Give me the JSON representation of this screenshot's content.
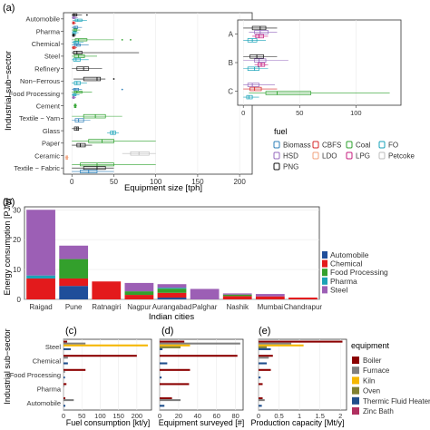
{
  "panels": {
    "a": "(a)",
    "b": "(b)",
    "c": "(c)",
    "d": "(d)",
    "e": "(e)"
  },
  "colors": {
    "Biomass": "#2c7fb8",
    "CBFS": "#d62728",
    "Coal": "#2ca02c",
    "FO": "#17a2b8",
    "HSD": "#9467bd",
    "LDO": "#f2a07b",
    "LPG": "#c51b7d",
    "Petcoke": "#bdbdbd",
    "PNG": "#111111",
    "Automobile": "#1f4e9a",
    "Chemical": "#e31a1c",
    "Food Processing": "#33a02c",
    "Pharma": "#1aa3b5",
    "Steel": "#9c5fb5",
    "Boiler": "#8b0000",
    "Furnace": "#808080",
    "Kiln": "#f5b700",
    "Oven": "#808030",
    "Thermic Fluid Heater": "#1f4e8c",
    "Zinc Bath": "#b03060"
  },
  "chart_data": [
    {
      "type": "boxplot",
      "panel": "a",
      "xlabel": "Equipment size [tph]",
      "ylabel": "Industrial sub−sector",
      "xlim": [
        -10,
        215
      ],
      "xticks": [
        0,
        50,
        100,
        150,
        200
      ],
      "categories": [
        "Automobile",
        "Pharma",
        "Chemical",
        "Steel",
        "Refinery",
        "Non−Ferrous",
        "Food Processing",
        "Cement",
        "Textile − Yarn",
        "Glass",
        "Paper",
        "Ceramic",
        "Textile − Fabric"
      ],
      "legend_title": "fuel",
      "legend": [
        "Biomass",
        "CBFS",
        "Coal",
        "FO",
        "HSD",
        "LDO",
        "LPG",
        "Petcoke",
        "PNG"
      ],
      "boxes": [
        {
          "category": "Automobile",
          "fuel": "PNG",
          "min": 0,
          "q1": 1,
          "median": 3,
          "q3": 6,
          "max": 12,
          "outliers": [
            18
          ]
        },
        {
          "category": "Automobile",
          "fuel": "HSD",
          "min": 0,
          "q1": 1,
          "median": 2,
          "q3": 4,
          "max": 7,
          "outliers": []
        },
        {
          "category": "Automobile",
          "fuel": "FO",
          "min": 1,
          "q1": 4,
          "median": 7,
          "q3": 12,
          "max": 18,
          "outliers": []
        },
        {
          "category": "Automobile",
          "fuel": "CBFS",
          "min": 0,
          "q1": 1,
          "median": 2,
          "q3": 3,
          "max": 5,
          "outliers": []
        },
        {
          "category": "Pharma",
          "fuel": "Biomass",
          "min": 0,
          "q1": 2,
          "median": 4,
          "q3": 7,
          "max": 12,
          "outliers": []
        },
        {
          "category": "Pharma",
          "fuel": "Coal",
          "min": 0,
          "q1": 2,
          "median": 4,
          "q3": 6,
          "max": 10,
          "outliers": []
        },
        {
          "category": "Pharma",
          "fuel": "FO",
          "min": 0,
          "q1": 1,
          "median": 3,
          "q3": 5,
          "max": 8,
          "outliers": []
        },
        {
          "category": "Pharma",
          "fuel": "PNG",
          "min": 0,
          "q1": 1,
          "median": 2,
          "q3": 3,
          "max": 5,
          "outliers": []
        },
        {
          "category": "Chemical",
          "fuel": "Coal",
          "min": 0,
          "q1": 4,
          "median": 8,
          "q3": 18,
          "max": 50,
          "outliers": [
            60,
            70
          ]
        },
        {
          "category": "Chemical",
          "fuel": "FO",
          "min": 0,
          "q1": 2,
          "median": 4,
          "q3": 8,
          "max": 14,
          "outliers": []
        },
        {
          "category": "Chemical",
          "fuel": "Biomass",
          "min": 0,
          "q1": 3,
          "median": 6,
          "q3": 10,
          "max": 20,
          "outliers": []
        },
        {
          "category": "Chemical",
          "fuel": "CBFS",
          "min": 0,
          "q1": 1,
          "median": 2,
          "q3": 4,
          "max": 6,
          "outliers": []
        },
        {
          "category": "Steel",
          "fuel": "PNG",
          "min": 0,
          "q1": 2,
          "median": 6,
          "q3": 12,
          "max": 80,
          "outliers": []
        },
        {
          "category": "Steel",
          "fuel": "Coal",
          "min": 0,
          "q1": 3,
          "median": 8,
          "q3": 15,
          "max": 30,
          "outliers": []
        },
        {
          "category": "Steel",
          "fuel": "FO",
          "min": 0,
          "q1": 2,
          "median": 5,
          "q3": 10,
          "max": 20,
          "outliers": []
        },
        {
          "category": "Refinery",
          "fuel": "PNG",
          "min": 0,
          "q1": 6,
          "median": 14,
          "q3": 20,
          "max": 36,
          "outliers": []
        },
        {
          "category": "Non−Ferrous",
          "fuel": "PNG",
          "min": 2,
          "q1": 14,
          "median": 30,
          "q3": 34,
          "max": 40,
          "outliers": [
            50
          ]
        },
        {
          "category": "Non−Ferrous",
          "fuel": "FO",
          "min": 0,
          "q1": 3,
          "median": 6,
          "q3": 10,
          "max": 18,
          "outliers": []
        },
        {
          "category": "Food Processing",
          "fuel": "Biomass",
          "min": 0,
          "q1": 2,
          "median": 4,
          "q3": 8,
          "max": 12,
          "outliers": [
            60
          ]
        },
        {
          "category": "Food Processing",
          "fuel": "Coal",
          "min": 0,
          "q1": 3,
          "median": 6,
          "q3": 12,
          "max": 24,
          "outliers": []
        },
        {
          "category": "Food Processing",
          "fuel": "FO",
          "min": 0,
          "q1": 1,
          "median": 3,
          "q3": 5,
          "max": 9,
          "outliers": []
        },
        {
          "category": "Food Processing",
          "fuel": "HSD",
          "min": 0,
          "q1": 1,
          "median": 2,
          "q3": 3,
          "max": 5,
          "outliers": []
        },
        {
          "category": "Cement",
          "fuel": "Coal",
          "min": 2,
          "q1": 3,
          "median": 4,
          "q3": 5,
          "max": 6,
          "outliers": []
        },
        {
          "category": "Textile − Yarn",
          "fuel": "Coal",
          "min": 0,
          "q1": 14,
          "median": 28,
          "q3": 40,
          "max": 60,
          "outliers": []
        },
        {
          "category": "Textile − Yarn",
          "fuel": "Biomass",
          "min": 0,
          "q1": 4,
          "median": 8,
          "q3": 14,
          "max": 22,
          "outliers": []
        },
        {
          "category": "Glass",
          "fuel": "PNG",
          "min": 0,
          "q1": 3,
          "median": 6,
          "q3": 8,
          "max": 12,
          "outliers": []
        },
        {
          "category": "Glass",
          "fuel": "FO",
          "min": 42,
          "q1": 46,
          "median": 49,
          "q3": 52,
          "max": 56,
          "outliers": []
        },
        {
          "category": "Paper",
          "fuel": "Coal",
          "min": 0,
          "q1": 20,
          "median": 36,
          "q3": 50,
          "max": 100,
          "outliers": []
        },
        {
          "category": "Paper",
          "fuel": "PNG",
          "min": 0,
          "q1": 6,
          "median": 10,
          "q3": 16,
          "max": 24,
          "outliers": []
        },
        {
          "category": "Ceramic",
          "fuel": "Petcoke",
          "min": 60,
          "q1": 70,
          "median": 80,
          "q3": 92,
          "max": 100,
          "outliers": []
        },
        {
          "category": "Ceramic",
          "fuel": "LDO",
          "min": -8,
          "q1": -7,
          "median": -6,
          "q3": -5,
          "max": -4,
          "outliers": []
        },
        {
          "category": "Textile − Fabric",
          "fuel": "Coal",
          "min": 0,
          "q1": 10,
          "median": 30,
          "q3": 50,
          "max": 100,
          "outliers": []
        },
        {
          "category": "Textile − Fabric",
          "fuel": "PNG",
          "min": 0,
          "q1": 14,
          "median": 30,
          "q3": 40,
          "max": 50,
          "outliers": []
        },
        {
          "category": "Textile − Fabric",
          "fuel": "Biomass",
          "min": 0,
          "q1": 10,
          "median": 20,
          "q3": 30,
          "max": 50,
          "outliers": []
        }
      ]
    },
    {
      "type": "boxplot",
      "panel": "a-inset",
      "xlim": [
        -5,
        140
      ],
      "xticks": [
        0,
        50,
        100
      ],
      "categories": [
        "A",
        "B",
        "C"
      ],
      "boxes": [
        {
          "category": "A",
          "fuel": "PNG",
          "min": 0,
          "q1": 8,
          "median": 15,
          "q3": 20,
          "max": 30,
          "outliers": []
        },
        {
          "category": "A",
          "fuel": "HSD",
          "min": 5,
          "q1": 10,
          "median": 15,
          "q3": 22,
          "max": 30,
          "outliers": []
        },
        {
          "category": "A",
          "fuel": "LPG",
          "min": 8,
          "q1": 11,
          "median": 14,
          "q3": 18,
          "max": 22,
          "outliers": []
        },
        {
          "category": "A",
          "fuel": "FO",
          "min": 0,
          "q1": 4,
          "median": 8,
          "q3": 12,
          "max": 20,
          "outliers": []
        },
        {
          "category": "B",
          "fuel": "PNG",
          "min": 0,
          "q1": 6,
          "median": 12,
          "q3": 18,
          "max": 30,
          "outliers": []
        },
        {
          "category": "B",
          "fuel": "HSD",
          "min": 0,
          "q1": 10,
          "median": 14,
          "q3": 20,
          "max": 40,
          "outliers": []
        },
        {
          "category": "B",
          "fuel": "LPG",
          "min": 10,
          "q1": 13,
          "median": 16,
          "q3": 19,
          "max": 22,
          "outliers": []
        },
        {
          "category": "B",
          "fuel": "FO",
          "min": 0,
          "q1": 4,
          "median": 10,
          "q3": 14,
          "max": 22,
          "outliers": []
        },
        {
          "category": "C",
          "fuel": "HSD",
          "min": 0,
          "q1": 4,
          "median": 8,
          "q3": 14,
          "max": 28,
          "outliers": []
        },
        {
          "category": "C",
          "fuel": "CBFS",
          "min": 0,
          "q1": 6,
          "median": 10,
          "q3": 16,
          "max": 30,
          "outliers": []
        },
        {
          "category": "C",
          "fuel": "Coal",
          "min": 5,
          "q1": 20,
          "median": 30,
          "q3": 60,
          "max": 130,
          "outliers": []
        },
        {
          "category": "C",
          "fuel": "FO",
          "min": 0,
          "q1": 3,
          "median": 5,
          "q3": 8,
          "max": 14,
          "outliers": []
        }
      ]
    },
    {
      "type": "stacked_bar",
      "panel": "b",
      "xlabel": "Indian cities",
      "ylabel": "Energy consumption [PJ/y]",
      "ylim": [
        0,
        31
      ],
      "yticks": [
        0,
        10,
        20,
        30
      ],
      "categories": [
        "Raigad",
        "Pune",
        "Ratnagiri",
        "Nagpur",
        "Aurangabad",
        "Palghar",
        "Nashik",
        "Mumbai",
        "Chandrapur"
      ],
      "legend": [
        "Automobile",
        "Chemical",
        "Food Processing",
        "Pharma",
        "Steel"
      ],
      "series": [
        {
          "name": "Automobile",
          "values": [
            0,
            4.5,
            0,
            0,
            0.6,
            0,
            0,
            0,
            0
          ]
        },
        {
          "name": "Chemical",
          "values": [
            7,
            2.5,
            6,
            1.5,
            1.6,
            0,
            1.1,
            1,
            0.6
          ]
        },
        {
          "name": "Food Processing",
          "values": [
            0,
            6.5,
            0,
            1.2,
            1.4,
            0,
            0.5,
            0,
            0
          ]
        },
        {
          "name": "Pharma",
          "values": [
            1,
            0,
            0,
            0,
            0.3,
            0,
            0,
            0,
            0
          ]
        },
        {
          "name": "Steel",
          "values": [
            22,
            4.5,
            0,
            2.8,
            1.2,
            3.5,
            0.4,
            0.8,
            0
          ]
        }
      ]
    },
    {
      "type": "grouped_hbar",
      "panel": "c",
      "ylabel": "Industrial sub−sector",
      "xlabel": "Fuel consumption [kt/y]",
      "xlim": [
        0,
        240
      ],
      "xticks": [
        0,
        50,
        100,
        150,
        200
      ],
      "categories": [
        "Steel",
        "Chemical",
        "Food Processing",
        "Pharma",
        "Automobile"
      ],
      "series": [
        {
          "name": "Boiler",
          "values": [
            10,
            200,
            60,
            8,
            5
          ]
        },
        {
          "name": "Furnace",
          "values": [
            60,
            12,
            4,
            2,
            28
          ]
        },
        {
          "name": "Kiln",
          "values": [
            230,
            0,
            0,
            0,
            0
          ]
        },
        {
          "name": "Oven",
          "values": [
            0,
            0,
            0,
            0,
            0
          ]
        },
        {
          "name": "Thermic Fluid Heater",
          "values": [
            20,
            12,
            4,
            0,
            5
          ]
        },
        {
          "name": "Zinc Bath",
          "values": [
            0,
            0,
            0,
            0,
            0
          ]
        }
      ]
    },
    {
      "type": "grouped_hbar",
      "panel": "d",
      "xlabel": "Equipment surveyed [#]",
      "xlim": [
        0,
        88
      ],
      "xticks": [
        0,
        20,
        40,
        60,
        80
      ],
      "categories": [
        "Steel",
        "Chemical",
        "Food Processing",
        "Pharma",
        "Automobile"
      ],
      "series": [
        {
          "name": "Boiler",
          "values": [
            26,
            82,
            32,
            31,
            13
          ]
        },
        {
          "name": "Furnace",
          "values": [
            85,
            0,
            0,
            0,
            22
          ]
        },
        {
          "name": "Kiln",
          "values": [
            32,
            0,
            0,
            0,
            0
          ]
        },
        {
          "name": "Oven",
          "values": [
            22,
            0,
            0,
            0,
            0
          ]
        },
        {
          "name": "Thermic Fluid Heater",
          "values": [
            3,
            8,
            2,
            0,
            5
          ]
        },
        {
          "name": "Zinc Bath",
          "values": [
            0,
            0,
            0,
            0,
            0
          ]
        }
      ]
    },
    {
      "type": "grouped_hbar",
      "panel": "e",
      "xlabel": "Production capacity [Mt/y]",
      "xlim": [
        0,
        2.15
      ],
      "xticks": [
        0,
        0.5,
        1.0,
        1.5,
        2.0
      ],
      "categories": [
        "Steel",
        "Chemical",
        "Food Processing",
        "Pharma",
        "Automobile"
      ],
      "legend_title": "equipment",
      "legend": [
        "Boiler",
        "Furnace",
        "Kiln",
        "Oven",
        "Thermic Fluid Heater",
        "Zinc Bath"
      ],
      "series": [
        {
          "name": "Boiler",
          "values": [
            2.05,
            0.35,
            0.3,
            0.1,
            0.1
          ]
        },
        {
          "name": "Furnace",
          "values": [
            0.8,
            0.25,
            0,
            0,
            0.15
          ]
        },
        {
          "name": "Kiln",
          "values": [
            1.1,
            0,
            0,
            0,
            0
          ]
        },
        {
          "name": "Oven",
          "values": [
            0.2,
            0,
            0,
            0,
            0
          ]
        },
        {
          "name": "Thermic Fluid Heater",
          "values": [
            0.3,
            0.2,
            0.05,
            0,
            0.08
          ]
        },
        {
          "name": "Zinc Bath",
          "values": [
            0,
            0,
            0,
            0,
            0
          ]
        }
      ]
    }
  ]
}
